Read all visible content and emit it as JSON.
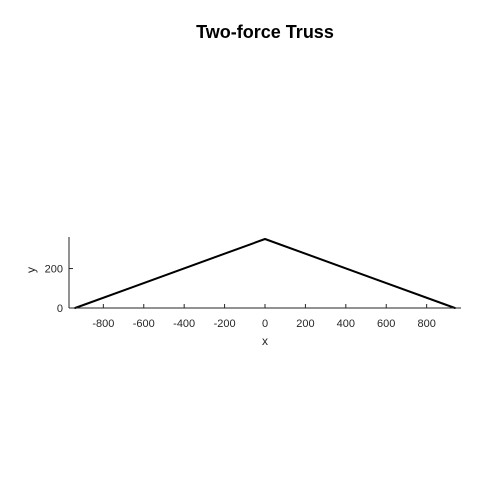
{
  "chart_data": {
    "type": "line",
    "title": "Two-force Truss",
    "xlabel": "x",
    "ylabel": "y",
    "xlim": [
      -970,
      970
    ],
    "ylim": [
      0,
      360
    ],
    "xticks": [
      -800,
      -600,
      -400,
      -200,
      0,
      200,
      400,
      600,
      800
    ],
    "xtick_labels": [
      "-800",
      "-600",
      "-400",
      "-200",
      "0",
      "200",
      "400",
      "600",
      "800"
    ],
    "yticks": [
      0,
      200
    ],
    "ytick_labels": [
      "0",
      "200"
    ],
    "grid": false,
    "series": [
      {
        "x": [
          -940,
          0,
          940
        ],
        "y": [
          0,
          350,
          0
        ],
        "color": "#000000"
      }
    ]
  }
}
